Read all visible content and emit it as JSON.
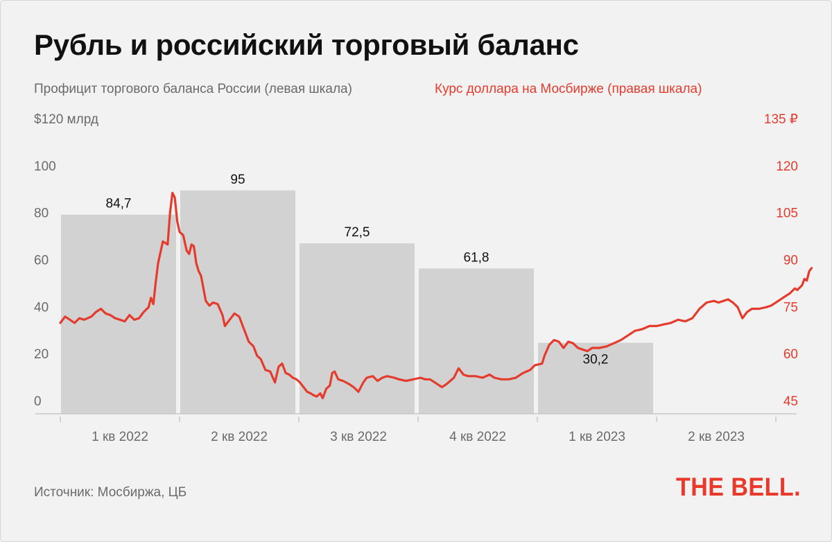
{
  "title": "Рубль и российский торговый баланс",
  "legend": {
    "left_series": "Профицит торгового баланса России (левая шкала)",
    "right_series": "Курс доллара на Мосбирже (правая шкала)"
  },
  "source": "Источник: Мосбиржа, ЦБ",
  "logo": "THE BELL.",
  "colors": {
    "bar": "#d2d2d2",
    "line": "#e53b2c",
    "left_text": "#6a6a6a",
    "right_text": "#e53b2c"
  },
  "chart_data": {
    "type": "bar+line",
    "categories": [
      "1 кв 2022",
      "2 кв 2022",
      "3 кв 2022",
      "4 кв 2022",
      "1 кв 2023",
      "2 кв 2023"
    ],
    "bars": {
      "name": "Профицит торгового баланса России",
      "axis": "left",
      "values": [
        84.7,
        95,
        72.5,
        61.8,
        30.2,
        null
      ],
      "labels": [
        "84,7",
        "95",
        "72,5",
        "61,8",
        "30,2",
        ""
      ]
    },
    "left_axis": {
      "ylim": [
        0,
        120
      ],
      "ticks": [
        0,
        20,
        40,
        60,
        80,
        100,
        120
      ],
      "tick_labels": [
        "0",
        "20",
        "40",
        "60",
        "80",
        "100",
        "$120 млрд"
      ]
    },
    "right_axis": {
      "ylim": [
        45,
        135
      ],
      "ticks": [
        45,
        60,
        75,
        90,
        105,
        120,
        135
      ],
      "tick_labels": [
        "45",
        "60",
        "75",
        "90",
        "105",
        "120",
        "135 ₽"
      ]
    },
    "line": {
      "name": "Курс доллара на Мосбирже",
      "axis": "right",
      "x_unit": "quarter position (0 = start of 1 кв 2022, 6 = end of 2 кв 2023)",
      "points": [
        [
          0.0,
          74.0
        ],
        [
          0.04,
          76.0
        ],
        [
          0.08,
          75.0
        ],
        [
          0.12,
          74.0
        ],
        [
          0.16,
          75.5
        ],
        [
          0.2,
          75.0
        ],
        [
          0.26,
          76.0
        ],
        [
          0.3,
          77.5
        ],
        [
          0.34,
          78.5
        ],
        [
          0.38,
          77.0
        ],
        [
          0.42,
          76.5
        ],
        [
          0.46,
          75.5
        ],
        [
          0.5,
          75.0
        ],
        [
          0.54,
          74.5
        ],
        [
          0.58,
          76.5
        ],
        [
          0.62,
          75.0
        ],
        [
          0.66,
          75.5
        ],
        [
          0.7,
          77.5
        ],
        [
          0.74,
          79.0
        ],
        [
          0.76,
          82.0
        ],
        [
          0.78,
          80.0
        ],
        [
          0.8,
          87.0
        ],
        [
          0.82,
          93.0
        ],
        [
          0.86,
          100.0
        ],
        [
          0.9,
          99.0
        ],
        [
          0.92,
          109.0
        ],
        [
          0.94,
          115.5
        ],
        [
          0.96,
          114.0
        ],
        [
          0.98,
          106.5
        ],
        [
          1.0,
          103.0
        ],
        [
          1.03,
          102.0
        ],
        [
          1.06,
          97.0
        ],
        [
          1.08,
          96.0
        ],
        [
          1.1,
          99.0
        ],
        [
          1.12,
          98.5
        ],
        [
          1.14,
          93.0
        ],
        [
          1.16,
          90.5
        ],
        [
          1.18,
          89.0
        ],
        [
          1.2,
          85.0
        ],
        [
          1.22,
          81.0
        ],
        [
          1.25,
          79.5
        ],
        [
          1.28,
          80.5
        ],
        [
          1.32,
          80.0
        ],
        [
          1.36,
          76.5
        ],
        [
          1.38,
          73.0
        ],
        [
          1.42,
          75.0
        ],
        [
          1.46,
          77.0
        ],
        [
          1.5,
          76.0
        ],
        [
          1.54,
          72.0
        ],
        [
          1.58,
          68.0
        ],
        [
          1.62,
          66.5
        ],
        [
          1.65,
          63.5
        ],
        [
          1.68,
          62.5
        ],
        [
          1.72,
          59.0
        ],
        [
          1.76,
          58.5
        ],
        [
          1.8,
          55.0
        ],
        [
          1.83,
          60.0
        ],
        [
          1.86,
          61.0
        ],
        [
          1.89,
          58.0
        ],
        [
          1.92,
          57.5
        ],
        [
          1.95,
          56.5
        ],
        [
          1.98,
          56.0
        ],
        [
          2.01,
          55.0
        ],
        [
          2.04,
          53.5
        ],
        [
          2.07,
          52.0
        ],
        [
          2.1,
          51.5
        ],
        [
          2.12,
          51.0
        ],
        [
          2.15,
          50.5
        ],
        [
          2.18,
          51.5
        ],
        [
          2.2,
          50.0
        ],
        [
          2.23,
          53.0
        ],
        [
          2.26,
          54.0
        ],
        [
          2.28,
          58.0
        ],
        [
          2.3,
          58.5
        ],
        [
          2.33,
          56.0
        ],
        [
          2.37,
          55.5
        ],
        [
          2.42,
          54.5
        ],
        [
          2.46,
          53.5
        ],
        [
          2.5,
          52.0
        ],
        [
          2.54,
          55.0
        ],
        [
          2.57,
          56.5
        ],
        [
          2.62,
          57.0
        ],
        [
          2.66,
          55.5
        ],
        [
          2.7,
          56.5
        ],
        [
          2.74,
          57.0
        ],
        [
          2.8,
          56.5
        ],
        [
          2.84,
          56.0
        ],
        [
          2.9,
          55.5
        ],
        [
          2.96,
          56.0
        ],
        [
          3.02,
          56.5
        ],
        [
          3.06,
          56.0
        ],
        [
          3.1,
          56.0
        ],
        [
          3.14,
          55.0
        ],
        [
          3.18,
          54.0
        ],
        [
          3.2,
          53.5
        ],
        [
          3.24,
          54.5
        ],
        [
          3.3,
          56.5
        ],
        [
          3.34,
          59.5
        ],
        [
          3.38,
          57.5
        ],
        [
          3.42,
          57.0
        ],
        [
          3.48,
          57.0
        ],
        [
          3.54,
          56.5
        ],
        [
          3.6,
          57.5
        ],
        [
          3.64,
          56.5
        ],
        [
          3.7,
          56.0
        ],
        [
          3.76,
          56.0
        ],
        [
          3.82,
          56.5
        ],
        [
          3.88,
          58.0
        ],
        [
          3.94,
          59.0
        ],
        [
          3.98,
          60.5
        ],
        [
          4.04,
          61.0
        ],
        [
          4.06,
          63.5
        ],
        [
          4.1,
          67.0
        ],
        [
          4.14,
          68.5
        ],
        [
          4.18,
          68.0
        ],
        [
          4.22,
          66.0
        ],
        [
          4.26,
          68.0
        ],
        [
          4.3,
          67.5
        ],
        [
          4.34,
          66.0
        ],
        [
          4.38,
          65.5
        ],
        [
          4.42,
          65.0
        ],
        [
          4.46,
          66.0
        ],
        [
          4.52,
          66.0
        ],
        [
          4.58,
          66.5
        ],
        [
          4.64,
          67.5
        ],
        [
          4.7,
          68.5
        ],
        [
          4.76,
          70.0
        ],
        [
          4.82,
          71.5
        ],
        [
          4.88,
          72.0
        ],
        [
          4.94,
          73.0
        ],
        [
          5.0,
          73.0
        ],
        [
          5.06,
          73.5
        ],
        [
          5.12,
          74.0
        ],
        [
          5.18,
          75.0
        ],
        [
          5.24,
          74.5
        ],
        [
          5.3,
          75.5
        ],
        [
          5.36,
          78.5
        ],
        [
          5.42,
          80.5
        ],
        [
          5.48,
          81.0
        ],
        [
          5.52,
          80.5
        ],
        [
          5.56,
          81.0
        ],
        [
          5.6,
          81.5
        ],
        [
          5.64,
          80.5
        ],
        [
          5.68,
          79.0
        ],
        [
          5.72,
          75.5
        ],
        [
          5.76,
          77.5
        ],
        [
          5.8,
          78.5
        ],
        [
          5.86,
          78.5
        ],
        [
          5.92,
          79.0
        ],
        [
          5.96,
          79.5
        ],
        [
          6.0,
          80.5
        ],
        [
          6.04,
          81.5
        ],
        [
          6.08,
          82.5
        ],
        [
          6.12,
          83.5
        ],
        [
          6.16,
          85.0
        ],
        [
          6.18,
          84.5
        ],
        [
          6.22,
          86.0
        ],
        [
          6.24,
          88.0
        ],
        [
          6.26,
          87.5
        ],
        [
          6.28,
          90.5
        ],
        [
          6.3,
          91.5
        ]
      ]
    },
    "grid": false,
    "legend_placement": "top"
  }
}
